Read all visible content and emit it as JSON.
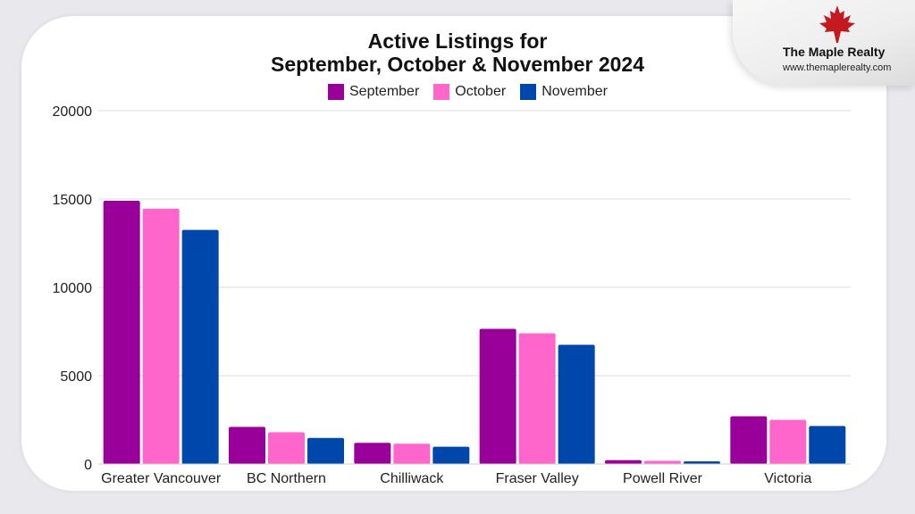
{
  "branding": {
    "name": "The Maple Realty",
    "url": "www.themaplerealty.com",
    "logo_icon": "maple-leaf-icon",
    "logo_color": "#c4191f"
  },
  "chart_data": {
    "type": "bar",
    "title_line1": "Active Listings for",
    "title_line2": "September, October & November 2024",
    "xlabel": "",
    "ylabel": "",
    "ylim": [
      0,
      20000
    ],
    "yticks": [
      0,
      5000,
      10000,
      15000,
      20000
    ],
    "grid": true,
    "legend_position": "top-center",
    "categories": [
      "Greater Vancouver",
      "BC Northern",
      "Chilliwack",
      "Fraser Valley",
      "Powell River",
      "Victoria"
    ],
    "series": [
      {
        "name": "September",
        "color": "#990099",
        "values": [
          14900,
          2100,
          1200,
          7650,
          220,
          2700
        ]
      },
      {
        "name": "October",
        "color": "#ff66cc",
        "values": [
          14450,
          1800,
          1150,
          7400,
          180,
          2500
        ]
      },
      {
        "name": "November",
        "color": "#0047ab",
        "values": [
          13250,
          1480,
          980,
          6750,
          150,
          2150
        ]
      }
    ]
  }
}
